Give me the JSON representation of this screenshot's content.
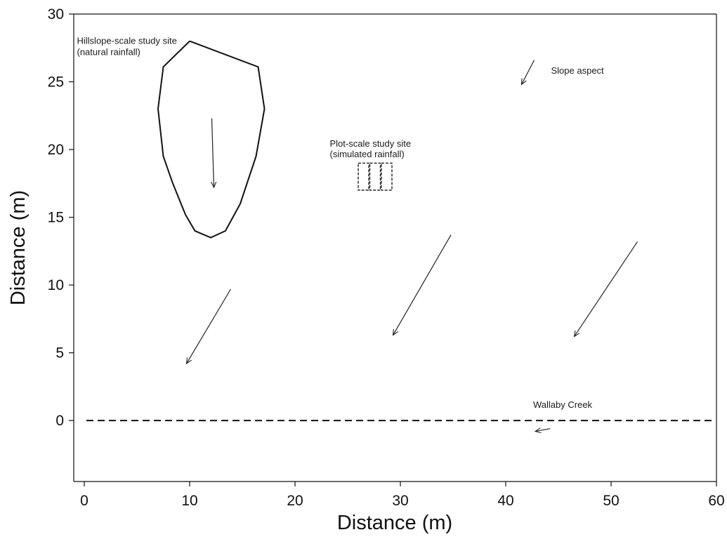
{
  "chart_data": {
    "type": "scatter",
    "xlabel": "Distance (m)",
    "ylabel": "Distance (m)",
    "xlim": [
      -1,
      60
    ],
    "ylim": [
      -4.5,
      30
    ],
    "x_ticks": [
      0,
      10,
      20,
      30,
      40,
      50,
      60
    ],
    "y_ticks": [
      0,
      5,
      10,
      15,
      20,
      25,
      30
    ],
    "grid": false,
    "hillslope_site": {
      "label_line1": "Hillslope-scale study site",
      "label_line2": "(natural rainfall)",
      "label_at": [
        -0.7,
        27.8
      ],
      "boundary": [
        [
          10,
          28
        ],
        [
          16.5,
          26.1
        ],
        [
          17.1,
          23
        ],
        [
          16.3,
          19.5
        ],
        [
          14.8,
          16
        ],
        [
          13.4,
          14
        ],
        [
          12,
          13.5
        ],
        [
          10.5,
          14
        ],
        [
          9.6,
          15.2
        ],
        [
          8.4,
          17.5
        ],
        [
          7.5,
          19.5
        ],
        [
          7,
          23
        ],
        [
          7.5,
          26.1
        ],
        [
          10,
          28
        ]
      ],
      "arrow": {
        "from": [
          12.1,
          22.3
        ],
        "to": [
          12.3,
          17.2
        ]
      }
    },
    "plot_site": {
      "label_line1": "Plot-scale study site",
      "label_line2": "(simulated rainfall)",
      "label_at": [
        23.3,
        20.2
      ],
      "plots": [
        [
          26,
          17,
          1,
          2
        ],
        [
          27.1,
          17,
          1,
          2
        ],
        [
          28.2,
          17,
          1,
          2
        ]
      ]
    },
    "slope_aspect": {
      "label": "Slope aspect",
      "label_at": [
        44.3,
        25.6
      ],
      "key_arrow": {
        "from": [
          42.7,
          26.6
        ],
        "to": [
          41.5,
          24.8
        ]
      },
      "arrows": [
        {
          "from": [
            13.9,
            9.7
          ],
          "to": [
            9.7,
            4.2
          ]
        },
        {
          "from": [
            34.8,
            13.7
          ],
          "to": [
            29.3,
            6.3
          ]
        },
        {
          "from": [
            52.5,
            13.2
          ],
          "to": [
            46.5,
            6.2
          ]
        }
      ]
    },
    "creek": {
      "label": "Wallaby Creek",
      "label_at": [
        42.6,
        0.95
      ],
      "y": 0,
      "x_from": 0.2,
      "x_to": 59.9,
      "flow_arrow": {
        "from": [
          44.2,
          -0.6
        ],
        "to": [
          42.8,
          -0.8
        ]
      }
    }
  }
}
